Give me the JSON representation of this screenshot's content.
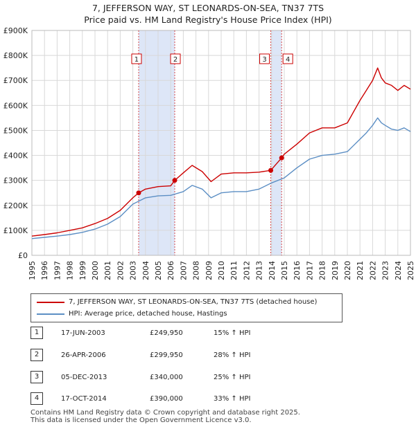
{
  "title_line1": "7, JEFFERSON WAY, ST LEONARDS-ON-SEA, TN37 7TS",
  "title_line2": "Price paid vs. HM Land Registry's House Price Index (HPI)",
  "colors": {
    "property": "#cc0000",
    "hpi": "#5b8ec4",
    "shade": "#dde6f7",
    "grid": "#d8d8d8"
  },
  "legend": {
    "property_label": "7, JEFFERSON WAY, ST LEONARDS-ON-SEA, TN37 7TS (detached house)",
    "hpi_label": "HPI: Average price, detached house, Hastings"
  },
  "transactions": [
    {
      "num": "1",
      "date": "17-JUN-2003",
      "price": "£249,950",
      "hpi": "15% ↑ HPI"
    },
    {
      "num": "2",
      "date": "26-APR-2006",
      "price": "£299,950",
      "hpi": "28% ↑ HPI"
    },
    {
      "num": "3",
      "date": "05-DEC-2013",
      "price": "£340,000",
      "hpi": "25% ↑ HPI"
    },
    {
      "num": "4",
      "date": "17-OCT-2014",
      "price": "£390,000",
      "hpi": "33% ↑ HPI"
    }
  ],
  "footer": {
    "line1": "Contains HM Land Registry data © Crown copyright and database right 2025.",
    "line2": "This data is licensed under the Open Government Licence v3.0."
  },
  "chart_data": {
    "type": "line",
    "title": "7, JEFFERSON WAY, ST LEONARDS-ON-SEA, TN37 7TS — Price paid vs. HM Land Registry's House Price Index (HPI)",
    "xlabel": "",
    "ylabel": "",
    "xlim": [
      1995,
      2025
    ],
    "ylim": [
      0,
      900000
    ],
    "x_ticks": [
      "1995",
      "1996",
      "1997",
      "1998",
      "1999",
      "2000",
      "2001",
      "2002",
      "2003",
      "2004",
      "2005",
      "2006",
      "2007",
      "2008",
      "2009",
      "2010",
      "2011",
      "2012",
      "2013",
      "2014",
      "2015",
      "2016",
      "2017",
      "2018",
      "2019",
      "2020",
      "2021",
      "2022",
      "2023",
      "2024",
      "2025"
    ],
    "y_ticks": [
      {
        "value": 0,
        "label": "£0"
      },
      {
        "value": 100000,
        "label": "£100K"
      },
      {
        "value": 200000,
        "label": "£200K"
      },
      {
        "value": 300000,
        "label": "£300K"
      },
      {
        "value": 400000,
        "label": "£400K"
      },
      {
        "value": 500000,
        "label": "£500K"
      },
      {
        "value": 600000,
        "label": "£600K"
      },
      {
        "value": 700000,
        "label": "£700K"
      },
      {
        "value": 800000,
        "label": "£800K"
      },
      {
        "value": 900000,
        "label": "£900K"
      }
    ],
    "grid": true,
    "shaded_ranges": [
      [
        2003.46,
        2006.32
      ],
      [
        2013.93,
        2014.79
      ]
    ],
    "sale_markers": [
      {
        "label": "1",
        "x": 2003.46,
        "y": 249950
      },
      {
        "label": "2",
        "x": 2006.32,
        "y": 299950
      },
      {
        "label": "3",
        "x": 2013.93,
        "y": 340000
      },
      {
        "label": "4",
        "x": 2014.79,
        "y": 390000
      }
    ],
    "series": [
      {
        "name": "7, JEFFERSON WAY, ST LEONARDS-ON-SEA, TN37 7TS (detached house)",
        "x": [
          1995,
          1996,
          1997,
          1998,
          1999,
          2000,
          2001,
          2002,
          2003,
          2003.46,
          2004,
          2005,
          2006,
          2006.32,
          2007,
          2007.7,
          2008.5,
          2009.2,
          2010,
          2011,
          2012,
          2013,
          2013.93,
          2014.79,
          2015,
          2016,
          2017,
          2018,
          2019,
          2020,
          2021,
          2021.5,
          2022,
          2022.4,
          2022.7,
          2023,
          2023.5,
          2024,
          2024.5,
          2025
        ],
        "values": [
          77000,
          83000,
          90000,
          100000,
          110000,
          127000,
          148000,
          180000,
          230000,
          249950,
          265000,
          275000,
          278000,
          299950,
          330000,
          360000,
          335000,
          295000,
          325000,
          330000,
          330000,
          333000,
          340000,
          390000,
          405000,
          445000,
          490000,
          510000,
          510000,
          530000,
          620000,
          660000,
          700000,
          750000,
          710000,
          690000,
          680000,
          660000,
          680000,
          665000
        ]
      },
      {
        "name": "HPI: Average price, detached house, Hastings",
        "x": [
          1995,
          1996,
          1997,
          1998,
          1999,
          2000,
          2001,
          2002,
          2003,
          2004,
          2005,
          2006,
          2007,
          2007.7,
          2008.5,
          2009.2,
          2010,
          2011,
          2012,
          2013,
          2014,
          2015,
          2016,
          2017,
          2018,
          2019,
          2020,
          2021,
          2021.5,
          2022,
          2022.4,
          2022.7,
          2023,
          2023.5,
          2024,
          2024.5,
          2025
        ],
        "values": [
          67000,
          72000,
          77000,
          83000,
          92000,
          105000,
          125000,
          155000,
          205000,
          230000,
          238000,
          240000,
          255000,
          280000,
          265000,
          230000,
          250000,
          255000,
          255000,
          265000,
          290000,
          310000,
          350000,
          385000,
          400000,
          405000,
          415000,
          465000,
          490000,
          520000,
          550000,
          530000,
          520000,
          505000,
          500000,
          510000,
          495000
        ]
      }
    ]
  }
}
